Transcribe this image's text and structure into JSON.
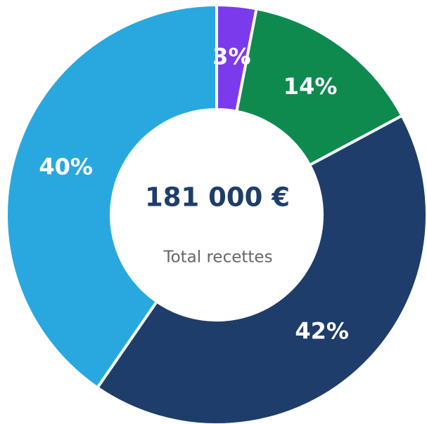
{
  "chart_data": {
    "type": "donut",
    "values": [
      3,
      14,
      42,
      40
    ],
    "value_labels": [
      "3%",
      "14%",
      "42%",
      "40%"
    ],
    "colors": [
      "#7c3aed",
      "#0e8a4f",
      "#1e3d6b",
      "#29a8e0"
    ],
    "center_value": "181 000 €",
    "center_label": "Total recettes"
  }
}
